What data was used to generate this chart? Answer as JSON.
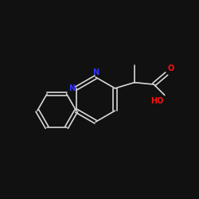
{
  "background_color": "#111111",
  "bond_color": "#d8d8d8",
  "n_color": "#3333ff",
  "o_color": "#ff1111",
  "ho_color": "#ff1111",
  "figsize": [
    2.5,
    2.5
  ],
  "dpi": 100,
  "font_size": 7.0,
  "lw": 1.2,
  "xlim": [
    0,
    10
  ],
  "ylim": [
    0,
    10
  ]
}
